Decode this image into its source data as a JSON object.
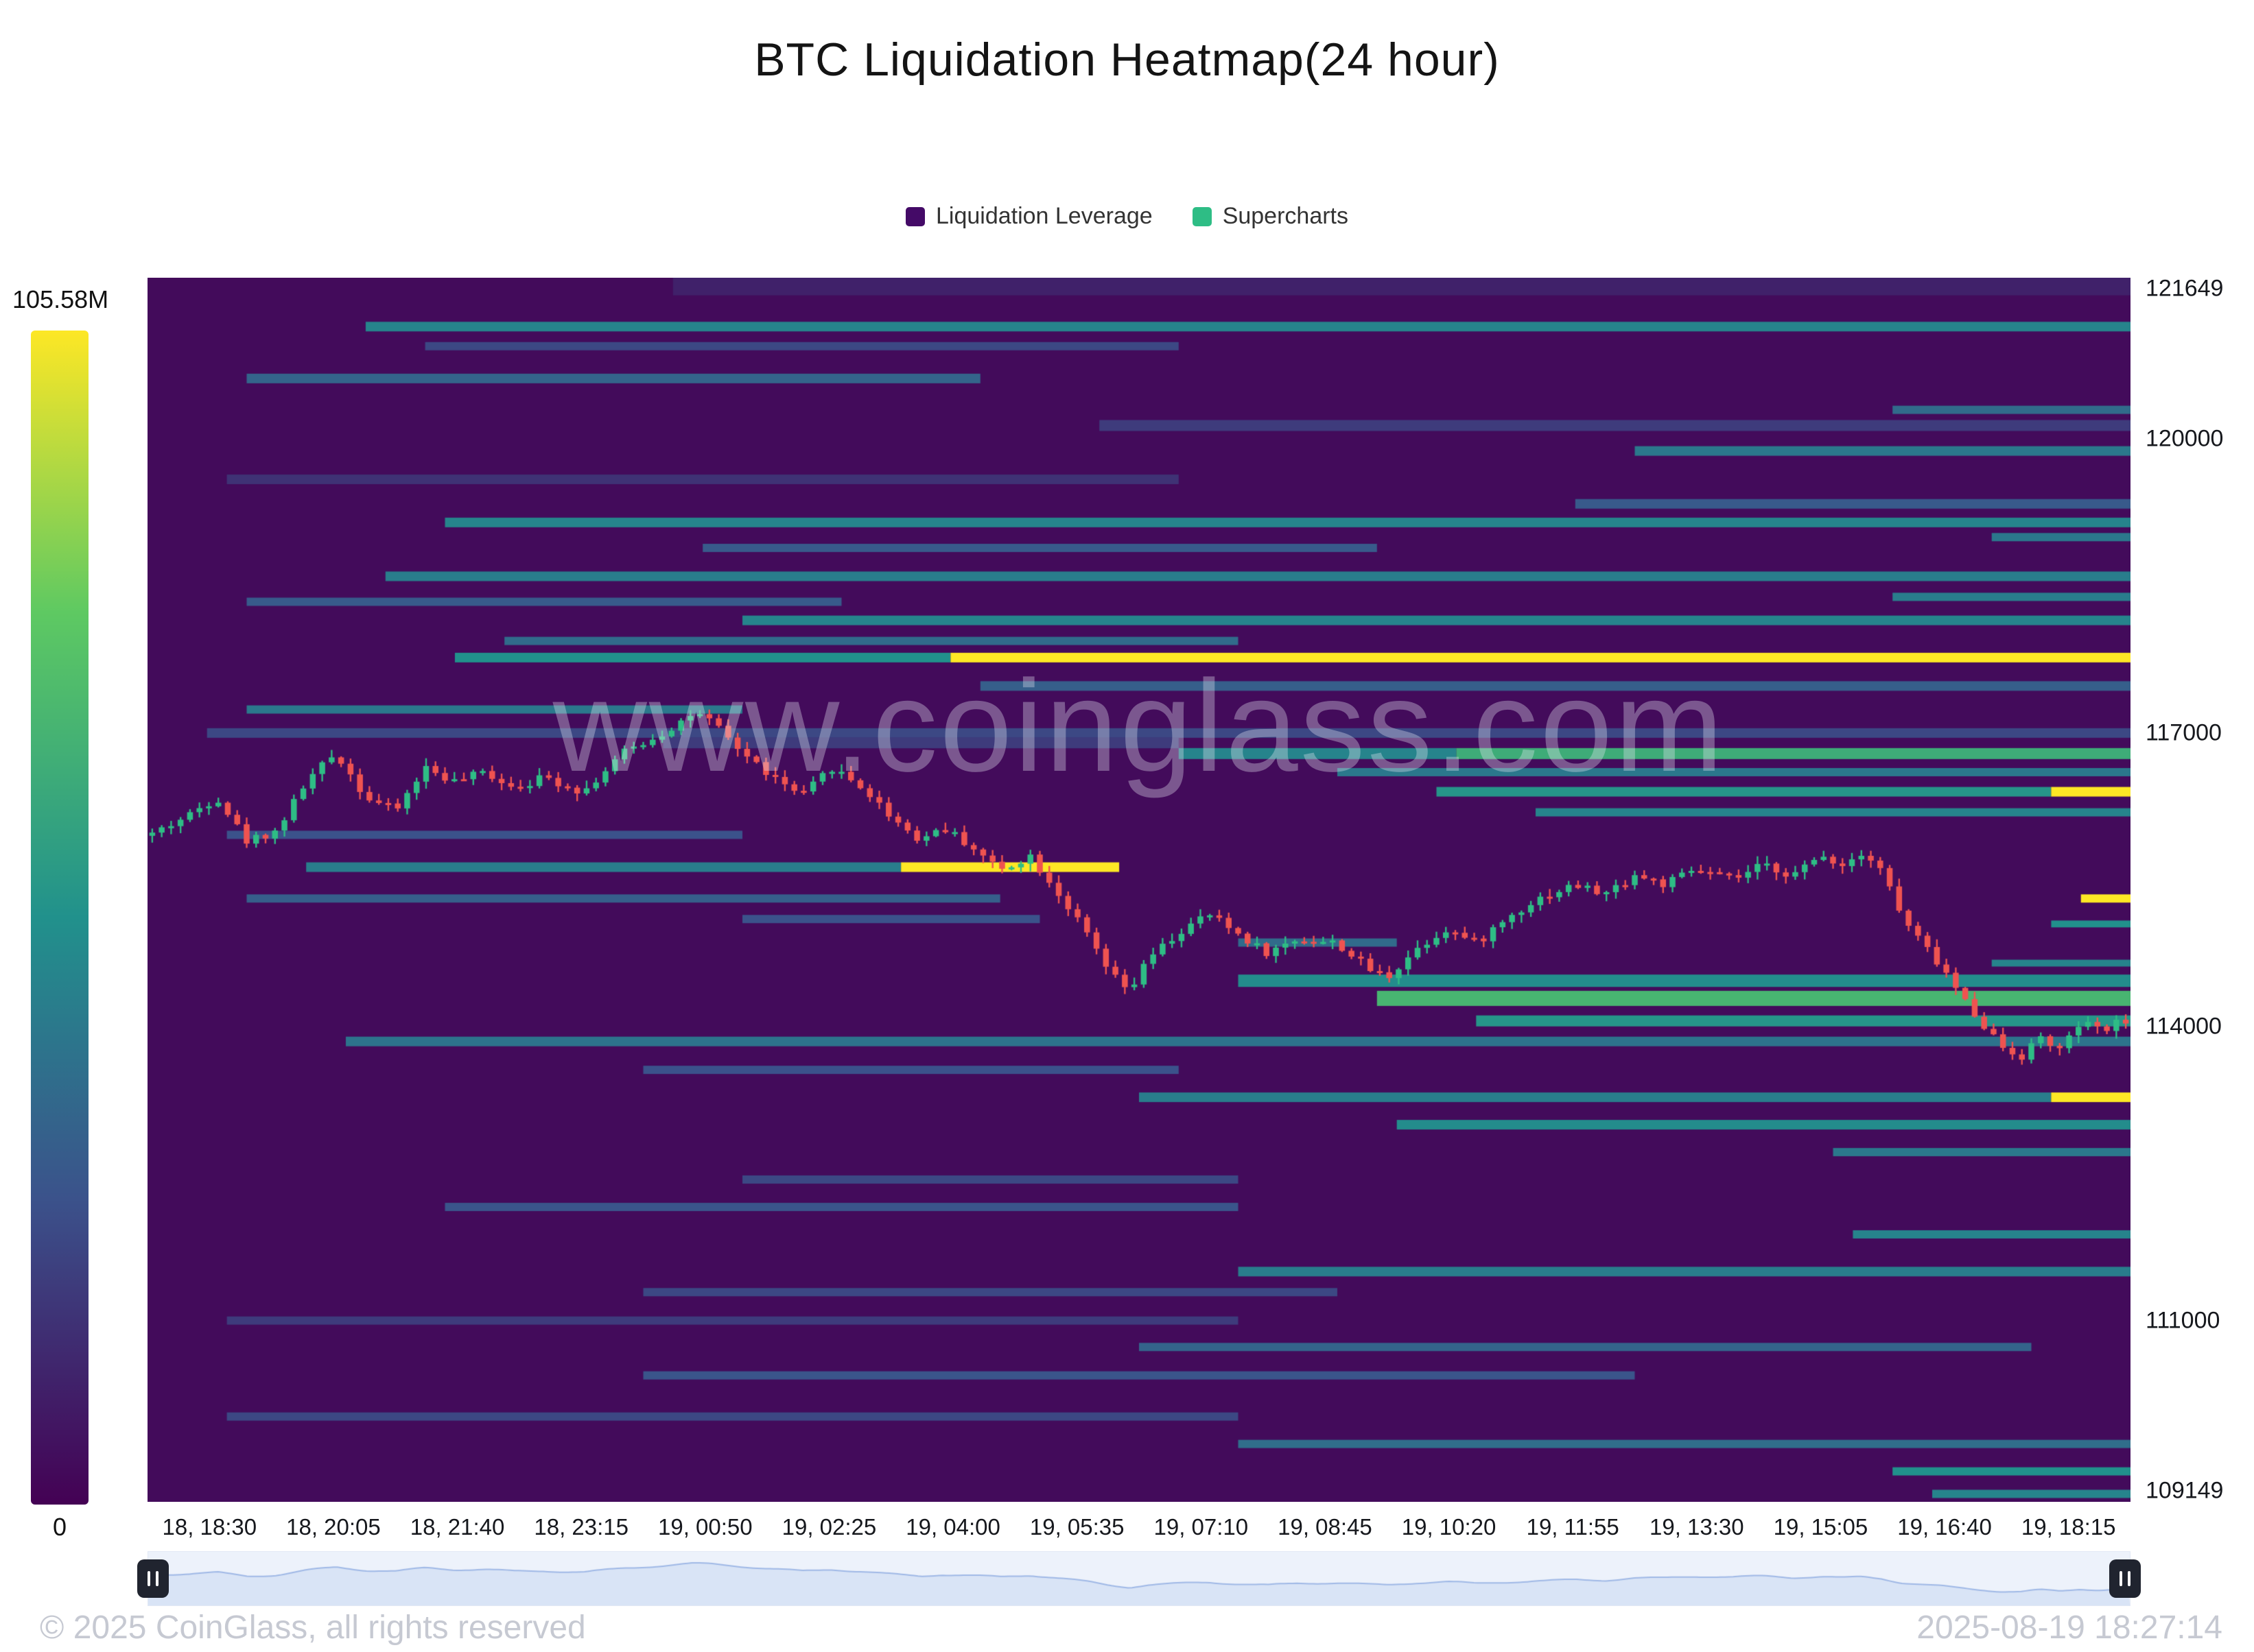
{
  "header": {
    "title": "BTC Liquidation Heatmap(24 hour)"
  },
  "legend": [
    {
      "label": "Liquidation Leverage",
      "color": "#440a67"
    },
    {
      "label": "Supercharts",
      "color": "#2ebd85"
    }
  ],
  "footer": {
    "copyright": "© 2025 CoinGlass, all rights reserved",
    "timestamp": "2025-08-19 18:27:14"
  },
  "chart_data": {
    "type": "heatmap",
    "overlay": "candlestick",
    "title": "BTC Liquidation Heatmap(24 hour)",
    "watermark": "www.coinglass.com",
    "xlabel": "",
    "ylabel": "",
    "ylim": [
      109149,
      121649
    ],
    "grid": false,
    "legend_position": "top-center",
    "colorbar": {
      "min": 0,
      "max": 105580000,
      "min_label": "0",
      "max_label": "105.58M"
    },
    "x_labels": [
      "18, 18:30",
      "18, 20:05",
      "18, 21:40",
      "18, 23:15",
      "19, 00:50",
      "19, 02:25",
      "19, 04:00",
      "19, 05:35",
      "19, 07:10",
      "19, 08:45",
      "19, 10:20",
      "19, 11:55",
      "19, 13:30",
      "19, 15:05",
      "19, 16:40",
      "19, 18:15"
    ],
    "y_ticks": [
      {
        "value": 121649,
        "label": "121649"
      },
      {
        "value": 120000,
        "label": "120000"
      },
      {
        "value": 117000,
        "label": "117000"
      },
      {
        "value": 114000,
        "label": "114000"
      },
      {
        "value": 111000,
        "label": "111000"
      },
      {
        "value": 109149,
        "label": "109149"
      }
    ],
    "band_columns": [
      "price",
      "x0_fraction",
      "x1_fraction",
      "intensity_0_to_1",
      "height_px"
    ],
    "heatmap_bands": [
      [
        121560,
        0.265,
        1.0,
        0.1,
        26
      ],
      [
        121150,
        0.11,
        1.0,
        0.45,
        14
      ],
      [
        120950,
        0.14,
        0.52,
        0.22,
        12
      ],
      [
        120620,
        0.05,
        0.42,
        0.32,
        14
      ],
      [
        120300,
        0.88,
        1.0,
        0.35,
        12
      ],
      [
        120140,
        0.48,
        1.0,
        0.18,
        16
      ],
      [
        119880,
        0.75,
        1.0,
        0.4,
        14
      ],
      [
        119590,
        0.04,
        0.52,
        0.15,
        14
      ],
      [
        119340,
        0.72,
        1.0,
        0.28,
        14
      ],
      [
        119150,
        0.15,
        1.0,
        0.45,
        14
      ],
      [
        119000,
        0.93,
        1.0,
        0.4,
        12
      ],
      [
        118890,
        0.28,
        0.62,
        0.28,
        12
      ],
      [
        118600,
        0.12,
        1.0,
        0.42,
        14
      ],
      [
        118390,
        0.88,
        1.0,
        0.42,
        12
      ],
      [
        118340,
        0.05,
        0.35,
        0.28,
        12
      ],
      [
        118150,
        0.3,
        1.0,
        0.45,
        14
      ],
      [
        117940,
        0.18,
        0.55,
        0.35,
        12
      ],
      [
        117770,
        0.155,
        0.405,
        0.5,
        14
      ],
      [
        117770,
        0.405,
        1.0,
        1.0,
        14
      ],
      [
        117480,
        0.42,
        1.0,
        0.3,
        14
      ],
      [
        117240,
        0.05,
        0.3,
        0.4,
        12
      ],
      [
        117000,
        0.03,
        1.0,
        0.22,
        14
      ],
      [
        116900,
        0.26,
        0.52,
        0.18,
        16
      ],
      [
        116790,
        0.52,
        0.66,
        0.45,
        16
      ],
      [
        116790,
        0.66,
        1.0,
        0.62,
        16
      ],
      [
        116600,
        0.6,
        1.0,
        0.4,
        12
      ],
      [
        116400,
        0.65,
        0.96,
        0.52,
        14
      ],
      [
        116400,
        0.96,
        1.0,
        1.0,
        14
      ],
      [
        116190,
        0.7,
        1.0,
        0.45,
        12
      ],
      [
        115960,
        0.04,
        0.3,
        0.25,
        12
      ],
      [
        115630,
        0.08,
        0.38,
        0.42,
        14
      ],
      [
        115630,
        0.38,
        0.49,
        1.0,
        14
      ],
      [
        115310,
        0.05,
        0.43,
        0.3,
        12
      ],
      [
        115310,
        0.975,
        1.0,
        1.0,
        12
      ],
      [
        115100,
        0.3,
        0.45,
        0.25,
        12
      ],
      [
        115050,
        0.96,
        1.0,
        0.5,
        10
      ],
      [
        114860,
        0.55,
        0.63,
        0.35,
        12
      ],
      [
        114650,
        0.93,
        1.0,
        0.45,
        10
      ],
      [
        114470,
        0.55,
        1.0,
        0.48,
        18
      ],
      [
        114290,
        0.62,
        1.0,
        0.66,
        22
      ],
      [
        114060,
        0.67,
        1.0,
        0.52,
        16
      ],
      [
        113850,
        0.1,
        1.0,
        0.38,
        14
      ],
      [
        113560,
        0.25,
        0.52,
        0.25,
        12
      ],
      [
        113280,
        0.5,
        0.96,
        0.42,
        14
      ],
      [
        113280,
        0.96,
        1.0,
        1.0,
        14
      ],
      [
        113000,
        0.63,
        1.0,
        0.48,
        14
      ],
      [
        112720,
        0.85,
        1.0,
        0.4,
        12
      ],
      [
        112440,
        0.3,
        0.55,
        0.22,
        12
      ],
      [
        112160,
        0.15,
        0.55,
        0.26,
        12
      ],
      [
        111880,
        0.86,
        1.0,
        0.45,
        12
      ],
      [
        111500,
        0.55,
        1.0,
        0.42,
        14
      ],
      [
        111290,
        0.25,
        0.6,
        0.22,
        12
      ],
      [
        111000,
        0.04,
        0.55,
        0.18,
        12
      ],
      [
        110730,
        0.5,
        0.95,
        0.32,
        12
      ],
      [
        110440,
        0.25,
        0.75,
        0.26,
        12
      ],
      [
        110020,
        0.04,
        0.55,
        0.22,
        12
      ],
      [
        109740,
        0.55,
        1.0,
        0.36,
        12
      ],
      [
        109460,
        0.88,
        1.0,
        0.5,
        12
      ],
      [
        109230,
        0.9,
        1.0,
        0.45,
        12
      ]
    ],
    "candle_colors": {
      "up": "#2ebd85",
      "down": "#ef5350"
    },
    "price_path": [
      [
        0.0,
        115950
      ],
      [
        0.02,
        116150
      ],
      [
        0.035,
        116350
      ],
      [
        0.05,
        115900
      ],
      [
        0.065,
        116000
      ],
      [
        0.08,
        116500
      ],
      [
        0.095,
        116800
      ],
      [
        0.11,
        116350
      ],
      [
        0.125,
        116200
      ],
      [
        0.14,
        116650
      ],
      [
        0.155,
        116500
      ],
      [
        0.17,
        116600
      ],
      [
        0.185,
        116450
      ],
      [
        0.2,
        116550
      ],
      [
        0.22,
        116400
      ],
      [
        0.24,
        116800
      ],
      [
        0.26,
        117000
      ],
      [
        0.275,
        117200
      ],
      [
        0.285,
        117100
      ],
      [
        0.3,
        116800
      ],
      [
        0.315,
        116550
      ],
      [
        0.33,
        116350
      ],
      [
        0.345,
        116650
      ],
      [
        0.36,
        116450
      ],
      [
        0.375,
        116150
      ],
      [
        0.39,
        115900
      ],
      [
        0.4,
        116050
      ],
      [
        0.415,
        115850
      ],
      [
        0.43,
        115600
      ],
      [
        0.445,
        115750
      ],
      [
        0.46,
        115350
      ],
      [
        0.475,
        114900
      ],
      [
        0.485,
        114550
      ],
      [
        0.495,
        114350
      ],
      [
        0.505,
        114700
      ],
      [
        0.52,
        114950
      ],
      [
        0.535,
        115150
      ],
      [
        0.55,
        114950
      ],
      [
        0.565,
        114750
      ],
      [
        0.58,
        114900
      ],
      [
        0.6,
        114850
      ],
      [
        0.615,
        114600
      ],
      [
        0.625,
        114500
      ],
      [
        0.64,
        114800
      ],
      [
        0.655,
        115000
      ],
      [
        0.67,
        114850
      ],
      [
        0.685,
        115100
      ],
      [
        0.7,
        115300
      ],
      [
        0.72,
        115450
      ],
      [
        0.735,
        115350
      ],
      [
        0.75,
        115550
      ],
      [
        0.765,
        115450
      ],
      [
        0.78,
        115600
      ],
      [
        0.8,
        115500
      ],
      [
        0.815,
        115650
      ],
      [
        0.83,
        115550
      ],
      [
        0.845,
        115750
      ],
      [
        0.855,
        115650
      ],
      [
        0.865,
        115800
      ],
      [
        0.875,
        115600
      ],
      [
        0.885,
        115100
      ],
      [
        0.895,
        114850
      ],
      [
        0.905,
        114600
      ],
      [
        0.915,
        114300
      ],
      [
        0.925,
        114050
      ],
      [
        0.935,
        113800
      ],
      [
        0.945,
        113700
      ],
      [
        0.955,
        113900
      ],
      [
        0.965,
        113750
      ],
      [
        0.975,
        114050
      ],
      [
        0.985,
        113950
      ],
      [
        1.0,
        114100
      ]
    ]
  }
}
